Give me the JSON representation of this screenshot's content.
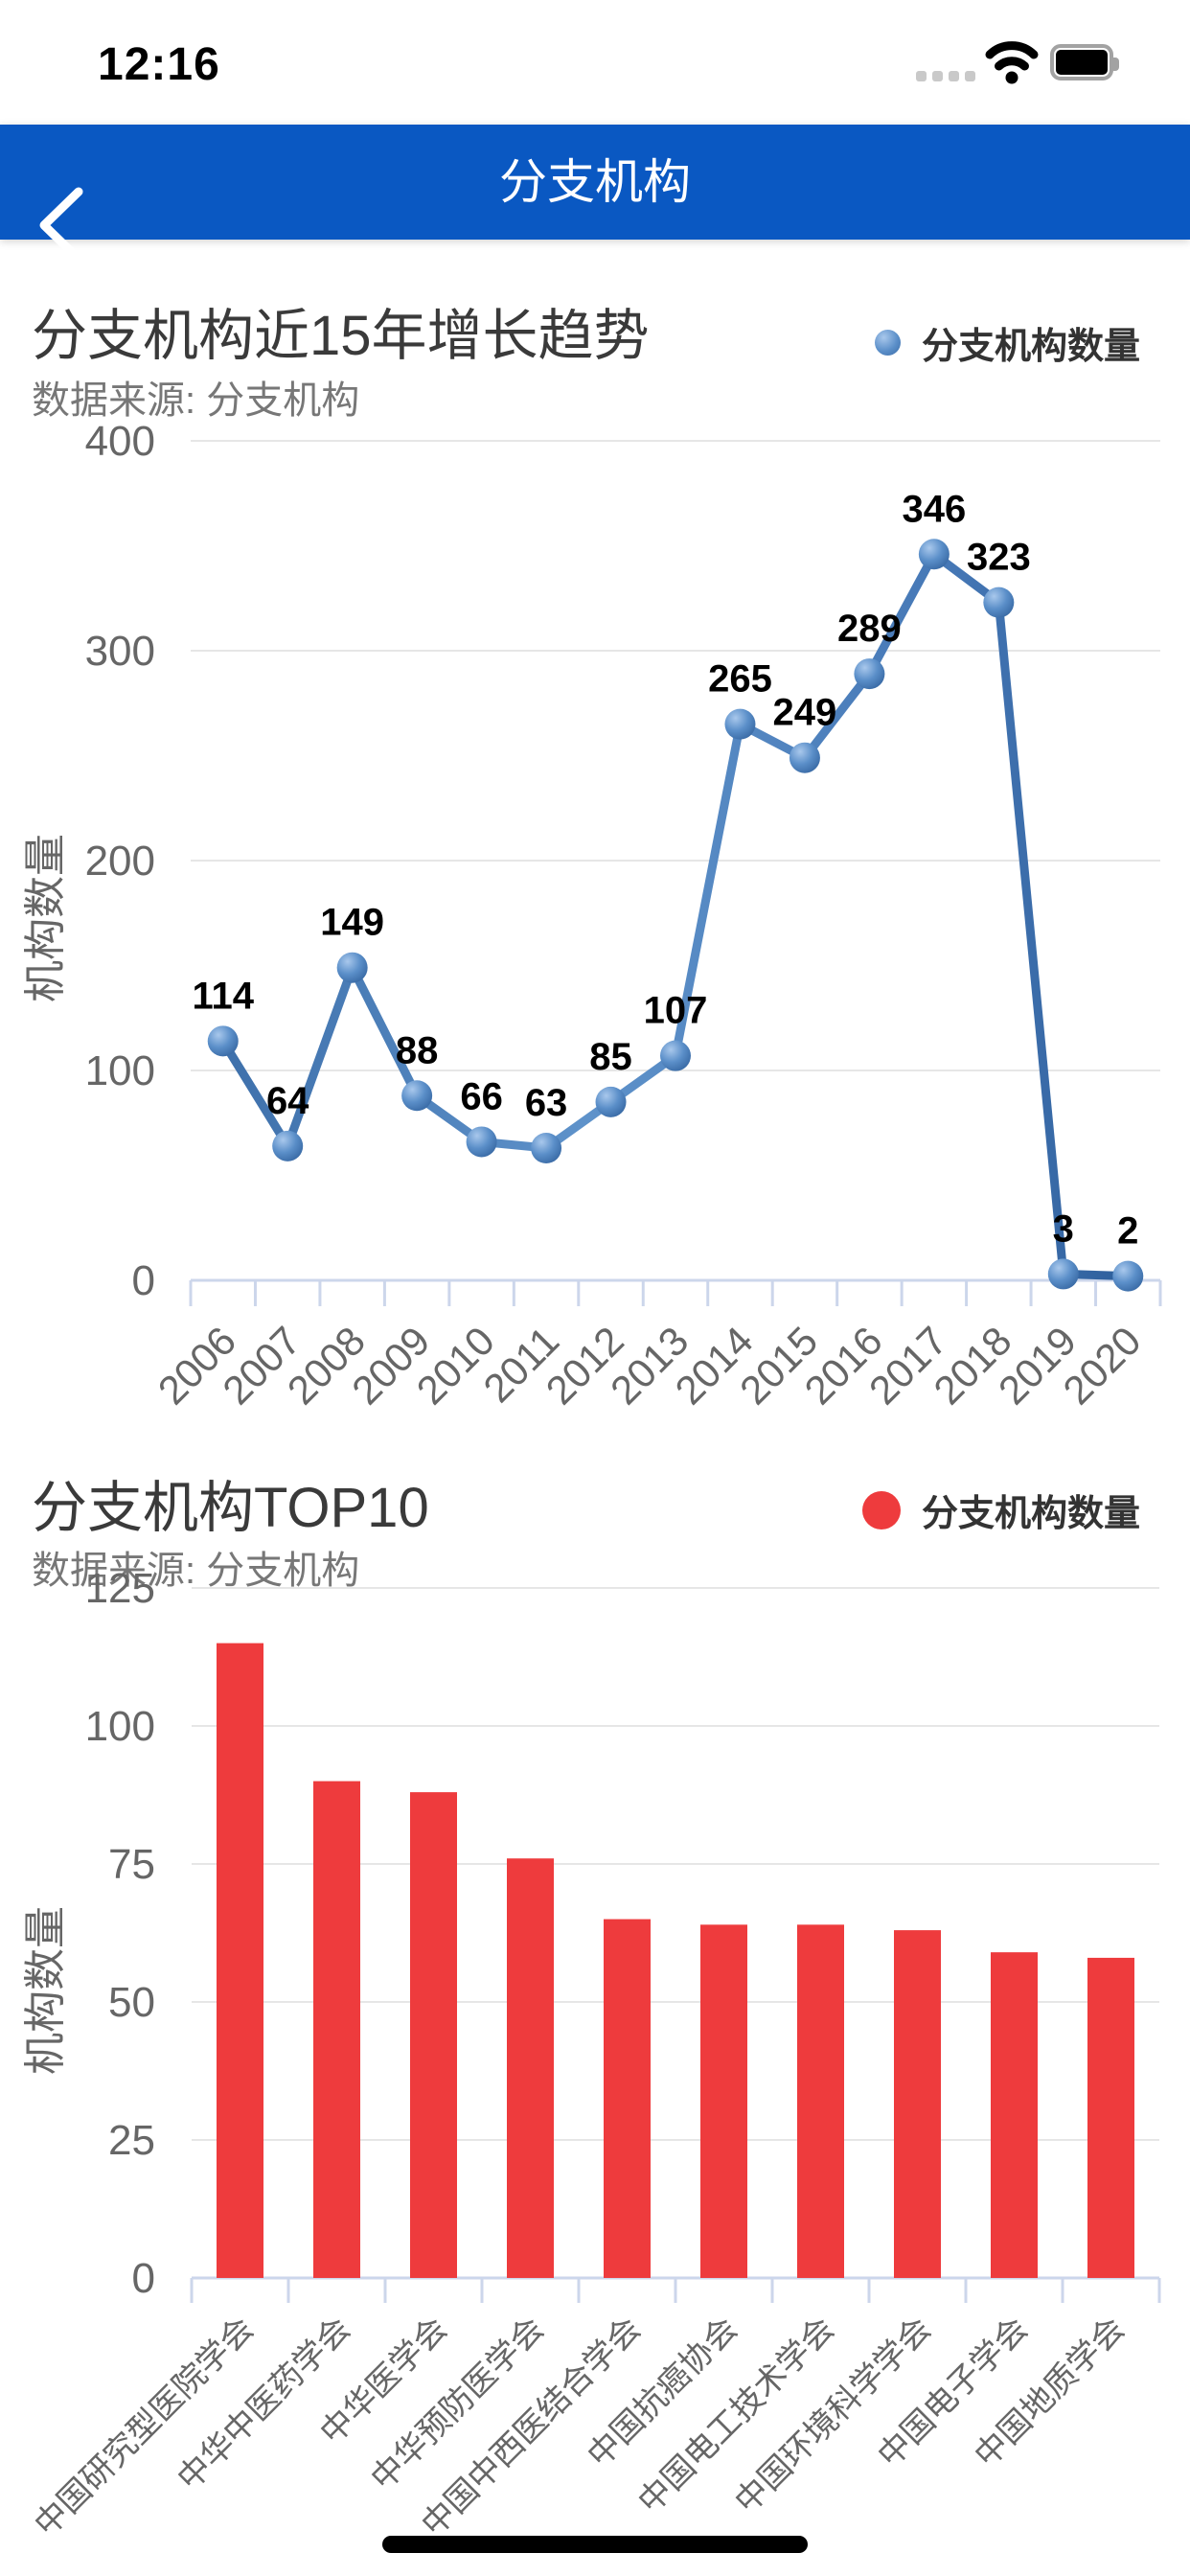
{
  "status_bar": {
    "time": "12:16",
    "icons": [
      "cellular-signal-icon",
      "wifi-icon",
      "battery-icon"
    ]
  },
  "nav_bar": {
    "title": "分支机构",
    "background_color": "#0a58c2",
    "back_icon": "back-chevron-icon"
  },
  "chart_data": [
    {
      "type": "line",
      "title": "分支机构近15年增长趋势",
      "subtitle": "数据来源: 分支机构",
      "legend": [
        "分支机构数量"
      ],
      "legend_position": "top-right",
      "categories": [
        "2006",
        "2007",
        "2008",
        "2009",
        "2010",
        "2011",
        "2012",
        "2013",
        "2014",
        "2015",
        "2016",
        "2017",
        "2018",
        "2019",
        "2020"
      ],
      "values": [
        114,
        64,
        149,
        88,
        66,
        63,
        85,
        107,
        265,
        249,
        289,
        346,
        323,
        3,
        2
      ],
      "xlabel": "",
      "ylabel": "机构数量",
      "ylim": [
        0,
        400
      ],
      "yticks": [
        0,
        100,
        200,
        300,
        400
      ],
      "grid": true,
      "line_color": "#4a7fbe",
      "marker_color": "#4a80bf",
      "data_labels": true
    },
    {
      "type": "bar",
      "title": "分支机构TOP10",
      "subtitle": "数据来源: 分支机构",
      "legend": [
        "分支机构数量"
      ],
      "legend_position": "top-right",
      "categories": [
        "中国研究型医院学会",
        "中华中医药学会",
        "中华医学会",
        "中华预防医学会",
        "中国中西医结合学会",
        "中国抗癌协会",
        "中国电工技术学会",
        "中国环境科学学会",
        "中国电子学会",
        "中国地质学会"
      ],
      "values": [
        115,
        90,
        88,
        76,
        65,
        64,
        64,
        63,
        59,
        58
      ],
      "xlabel": "",
      "ylabel": "机构数量",
      "ylim": [
        0,
        125
      ],
      "yticks": [
        0,
        25,
        50,
        75,
        100,
        125
      ],
      "grid": true,
      "bar_color": "#ee3b3d",
      "data_labels": false
    }
  ],
  "colors": {
    "nav_blue": "#0a58c2",
    "series_blue": "#4a7fbe",
    "series_red": "#ee3b3d",
    "grid": "#e6e6e6",
    "axis": "#ccd6eb",
    "axis_text": "#666666"
  },
  "home_indicator": ""
}
